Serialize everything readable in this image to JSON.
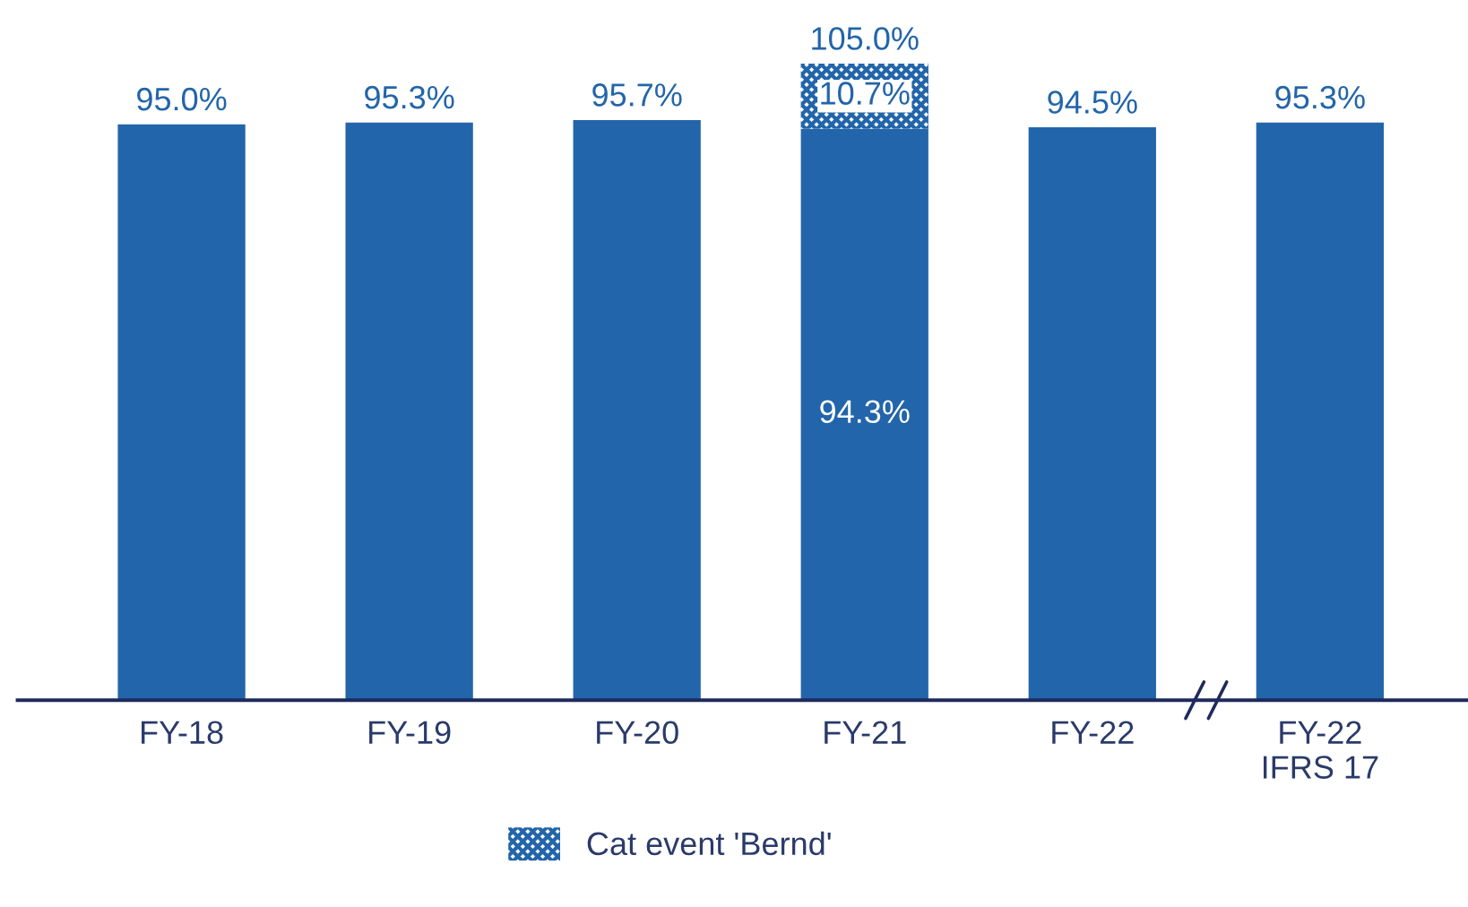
{
  "chart_data": {
    "type": "bar",
    "stacked": true,
    "categories": [
      "FY-18",
      "FY-19",
      "FY-20",
      "FY-21",
      "FY-22",
      "FY-22\nIFRS 17"
    ],
    "series": [
      {
        "color": "#2265aa",
        "values": [
          95.0,
          95.3,
          95.7,
          94.3,
          94.5,
          95.3
        ],
        "value_labels": [
          "95.0%",
          "95.3%",
          "95.7%",
          "94.3%",
          "94.5%",
          "95.3%"
        ]
      },
      {
        "name": "Cat event 'Bernd'",
        "color": "#2265aa",
        "values": [
          null,
          null,
          null,
          10.7,
          null,
          null
        ],
        "value_labels": [
          null,
          null,
          null,
          "10.7%",
          null,
          null
        ]
      }
    ],
    "totals": [
      null,
      null,
      null,
      "105.0%",
      null,
      null
    ],
    "tick_labels": "x",
    "grid": false,
    "legend": "bottom"
  }
}
